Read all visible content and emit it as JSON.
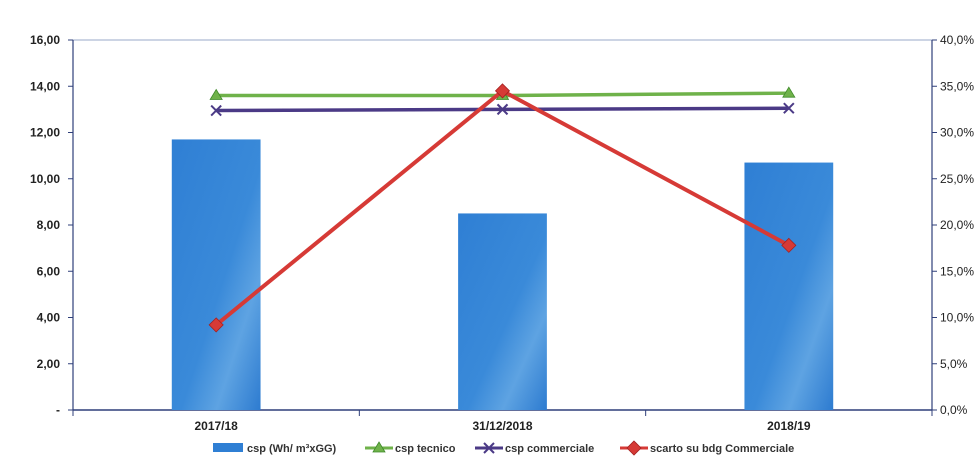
{
  "chart_data": {
    "type": "bar",
    "categories": [
      "2017/18",
      "31/12/2018",
      "2018/19"
    ],
    "y_left": {
      "range": [
        0,
        16
      ],
      "ticks": [
        "-",
        "2,00",
        "4,00",
        "6,00",
        "8,00",
        "10,00",
        "12,00",
        "14,00",
        "16,00"
      ]
    },
    "y_right": {
      "range": [
        0,
        40
      ],
      "ticks": [
        "0,0%",
        "5,0%",
        "10,0%",
        "15,0%",
        "20,0%",
        "25,0%",
        "30,0%",
        "35,0%",
        "40,0%"
      ]
    },
    "series": [
      {
        "name": "csp (Wh/ m³xGG)",
        "kind": "bar",
        "axis": "left",
        "color": "#2f7fd4",
        "values": [
          11.7,
          8.5,
          10.7
        ]
      },
      {
        "name": "csp tecnico",
        "kind": "line",
        "axis": "left",
        "color": "#6fb24a",
        "marker": "triangle",
        "values": [
          13.6,
          13.6,
          13.7
        ]
      },
      {
        "name": "csp commerciale",
        "kind": "line",
        "axis": "left",
        "color": "#4b3a86",
        "marker": "x",
        "values": [
          12.95,
          13.0,
          13.05
        ]
      },
      {
        "name": "scarto su bdg Commerciale",
        "kind": "line",
        "axis": "right",
        "color": "#d63a36",
        "marker": "diamond",
        "values": [
          9.2,
          34.5,
          17.8
        ]
      }
    ],
    "grid": false,
    "legend": "bottom"
  }
}
